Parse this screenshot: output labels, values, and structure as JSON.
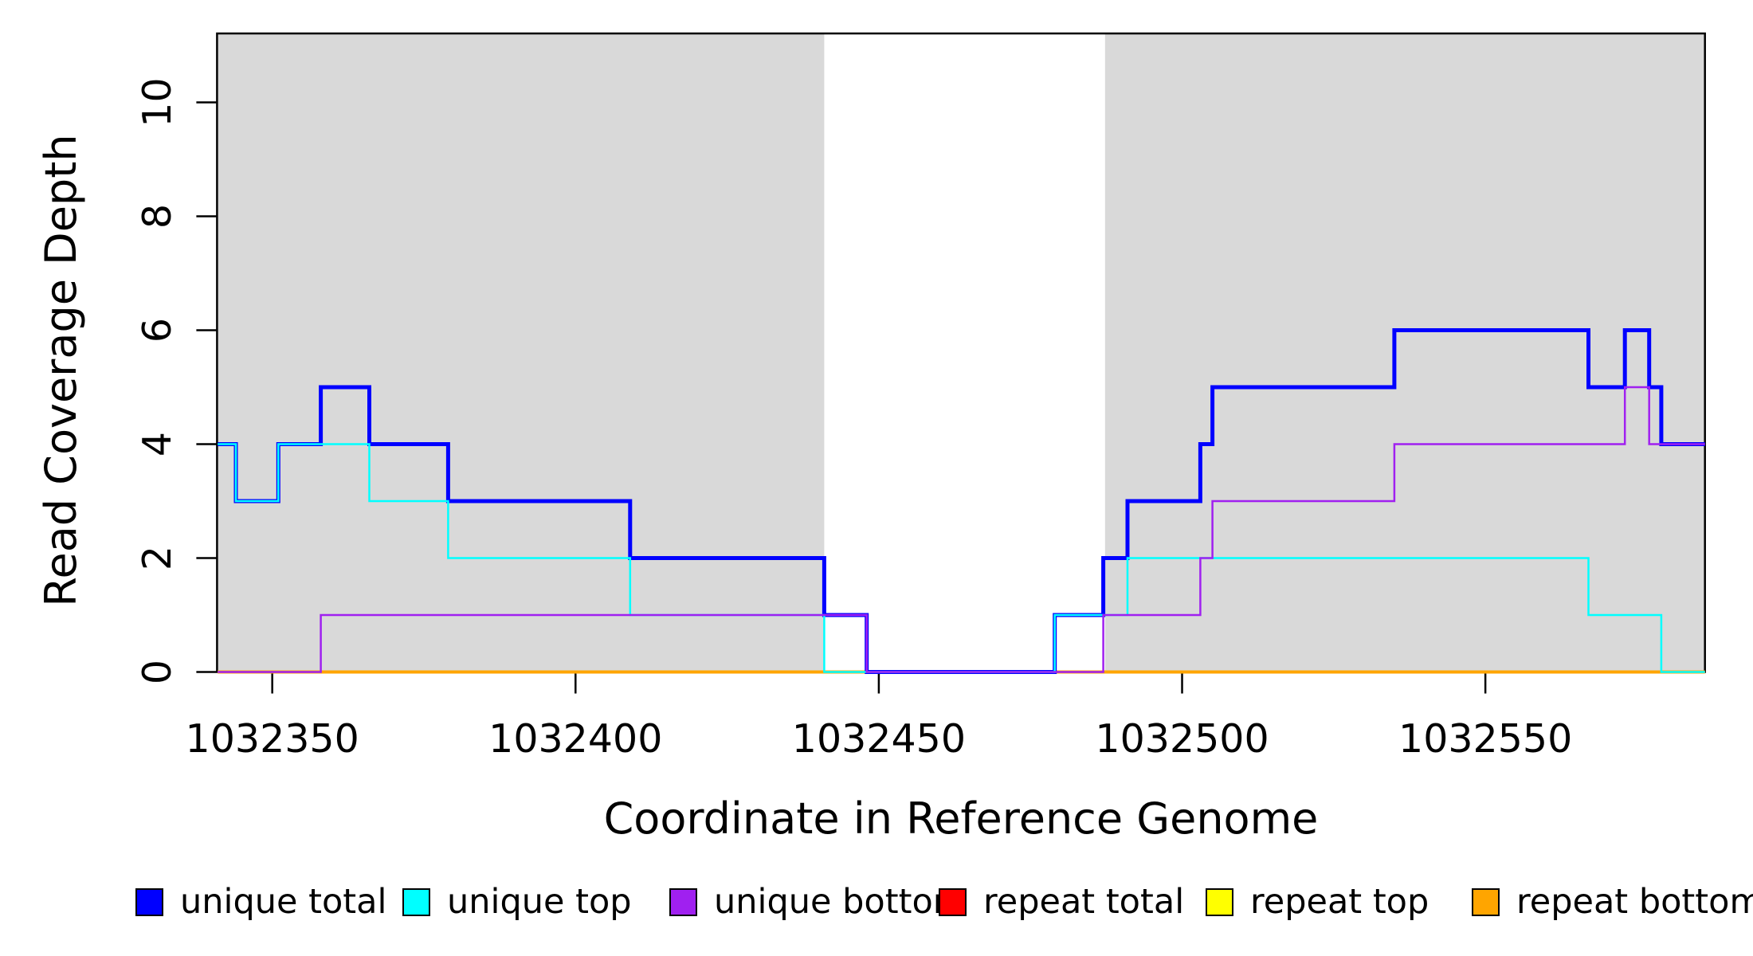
{
  "figure": {
    "background": "#ffffff",
    "box_color": "#000000",
    "shade_color": "#d9d9d9"
  },
  "chart_data": {
    "type": "line",
    "subtype": "step-coverage",
    "title": "",
    "xlabel": "Coordinate in Reference Genome",
    "ylabel": "Read Coverage Depth",
    "xlim": [
      1032340.9,
      1032586.2
    ],
    "ylim": [
      0,
      11.21
    ],
    "grid": false,
    "x_ticks": {
      "values": [
        1032350,
        1032400,
        1032450,
        1032500,
        1032550
      ],
      "labels": [
        "1032350",
        "1032400",
        "1032450",
        "1032500",
        "1032550"
      ]
    },
    "y_ticks": {
      "values": [
        0,
        2,
        4,
        6,
        8,
        10
      ],
      "labels": [
        "0",
        "2",
        "4",
        "6",
        "8",
        "10"
      ]
    },
    "shaded_regions": [
      {
        "name": "left-unique-region",
        "x0": 1032340.9,
        "x1": 1032441.0,
        "color": "#d9d9d9"
      },
      {
        "name": "right-unique-region",
        "x0": 1032487.3,
        "x1": 1032586.2,
        "color": "#d9d9d9"
      }
    ],
    "x_end": 1032586.2,
    "series": [
      {
        "name": "unique total",
        "color": "#0000ff",
        "line_width": 5,
        "steps": [
          [
            1032341,
            4
          ],
          [
            1032344,
            3
          ],
          [
            1032351,
            4
          ],
          [
            1032358,
            5
          ],
          [
            1032366,
            4
          ],
          [
            1032379,
            3
          ],
          [
            1032409,
            2
          ],
          [
            1032441,
            1
          ],
          [
            1032448,
            0
          ],
          [
            1032479,
            1
          ],
          [
            1032487,
            2
          ],
          [
            1032491,
            3
          ],
          [
            1032503,
            4
          ],
          [
            1032505,
            5
          ],
          [
            1032535,
            6
          ],
          [
            1032567,
            5
          ],
          [
            1032573,
            6
          ],
          [
            1032577,
            5
          ],
          [
            1032579,
            4
          ]
        ]
      },
      {
        "name": "unique top",
        "color": "#00ffff",
        "line_width": 2.5,
        "steps": [
          [
            1032341,
            4
          ],
          [
            1032344,
            3
          ],
          [
            1032351,
            4
          ],
          [
            1032366,
            3
          ],
          [
            1032379,
            2
          ],
          [
            1032409,
            1
          ],
          [
            1032441,
            0
          ],
          [
            1032479,
            1
          ],
          [
            1032491,
            2
          ],
          [
            1032567,
            1
          ],
          [
            1032579,
            0
          ]
        ]
      },
      {
        "name": "unique bottom",
        "color": "#a020f0",
        "line_width": 2.5,
        "steps": [
          [
            1032341,
            0
          ],
          [
            1032358,
            1
          ],
          [
            1032448,
            0
          ],
          [
            1032487,
            1
          ],
          [
            1032503,
            2
          ],
          [
            1032505,
            3
          ],
          [
            1032535,
            4
          ],
          [
            1032573,
            5
          ],
          [
            1032577,
            4
          ]
        ]
      },
      {
        "name": "repeat total",
        "color": "#ff0000",
        "line_width": 2.5,
        "steps": [
          [
            1032341,
            0
          ]
        ]
      },
      {
        "name": "repeat top",
        "color": "#ffff00",
        "line_width": 2.5,
        "steps": [
          [
            1032341,
            0
          ]
        ]
      },
      {
        "name": "repeat bottom",
        "color": "#ffa500",
        "line_width": 4,
        "steps": [
          [
            1032341,
            0
          ]
        ]
      }
    ],
    "draw_order": [
      "repeat total",
      "repeat top",
      "repeat bottom",
      "unique total",
      "unique top",
      "unique bottom"
    ],
    "legend": {
      "position": "bottom-horizontal",
      "items_x": [
        170,
        505,
        840,
        1178,
        1513,
        1847
      ]
    }
  }
}
